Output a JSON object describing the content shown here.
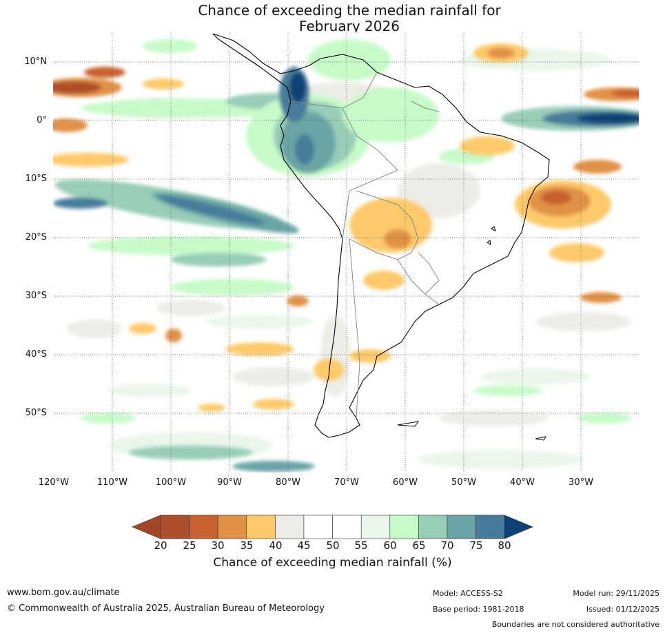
{
  "title": {
    "line1": "Chance of exceeding the median rainfall for",
    "line2": "February 2026"
  },
  "map": {
    "region": "South America",
    "lat_labels": [
      "10°N",
      "0°",
      "10°S",
      "20°S",
      "30°S",
      "40°S",
      "50°S"
    ],
    "lon_labels": [
      "120°W",
      "110°W",
      "100°W",
      "90°W",
      "80°W",
      "70°W",
      "60°W",
      "50°W",
      "40°W",
      "30°W"
    ]
  },
  "legend": {
    "ticks": [
      "20",
      "25",
      "30",
      "35",
      "40",
      "45",
      "50",
      "55",
      "60",
      "65",
      "70",
      "75",
      "80"
    ],
    "colors": [
      "#a4462a",
      "#b04d2a",
      "#c8612f",
      "#e09147",
      "#fdc96a",
      "#edebe6",
      "#ffffff",
      "#ffffff",
      "#e9f6e9",
      "#c7fac9",
      "#98cdb8",
      "#6aa4a6",
      "#477b9b",
      "#0c4276"
    ],
    "label": "Chance of exceeding median rainfall (%)"
  },
  "footer": {
    "website": "www.bom.gov.au/climate",
    "copyright": "© Commonwealth of Australia 2025, Australian Bureau of Meteorology",
    "model": "Model: ACCESS-S2",
    "base_period": "Base period: 1981-2018",
    "model_run": "Model run: 29/11/2025",
    "issued": "Issued: 01/12/2025",
    "disclaimer": "Boundaries are not considered authoritative"
  }
}
